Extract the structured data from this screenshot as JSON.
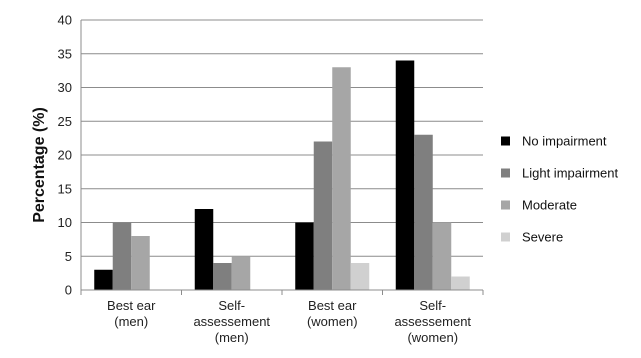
{
  "chart_data": {
    "type": "bar",
    "title": "",
    "xlabel": "",
    "ylabel": "Percentage (%)",
    "ylim": [
      0,
      40
    ],
    "y_ticks": [
      0,
      5,
      10,
      15,
      20,
      25,
      30,
      35,
      40
    ],
    "grid": "horizontal",
    "legend_position": "right",
    "categories": [
      [
        "Best ear",
        "(men)"
      ],
      [
        "Self-",
        "assessement",
        "(men)"
      ],
      [
        "Best ear",
        "(women)"
      ],
      [
        "Self-",
        "assessement",
        "(women)"
      ]
    ],
    "series": [
      {
        "name": "No impairment",
        "color": "#000000",
        "values": [
          3,
          12,
          10,
          34
        ]
      },
      {
        "name": "Light impairment",
        "color": "#7f7f7f",
        "values": [
          10,
          4,
          22,
          23
        ]
      },
      {
        "name": "Moderate",
        "color": "#a6a6a6",
        "values": [
          8,
          5,
          33,
          10
        ]
      },
      {
        "name": "Severe",
        "color": "#d0d0d0",
        "values": [
          0,
          0,
          4,
          2
        ]
      }
    ]
  }
}
